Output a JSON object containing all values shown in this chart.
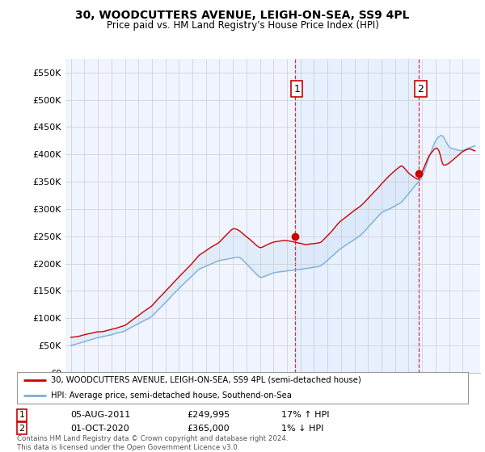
{
  "title": "30, WOODCUTTERS AVENUE, LEIGH-ON-SEA, SS9 4PL",
  "subtitle": "Price paid vs. HM Land Registry's House Price Index (HPI)",
  "ylabel_ticks": [
    "£0",
    "£50K",
    "£100K",
    "£150K",
    "£200K",
    "£250K",
    "£300K",
    "£350K",
    "£400K",
    "£450K",
    "£500K",
    "£550K"
  ],
  "ytick_values": [
    0,
    50000,
    100000,
    150000,
    200000,
    250000,
    300000,
    350000,
    400000,
    450000,
    500000,
    550000
  ],
  "ylim": [
    0,
    575000
  ],
  "sale1_x": 2011.583,
  "sale1_value": 249995,
  "sale1_label": "1",
  "sale2_x": 2020.75,
  "sale2_value": 365000,
  "sale2_label": "2",
  "legend_line1": "30, WOODCUTTERS AVENUE, LEIGH-ON-SEA, SS9 4PL (semi-detached house)",
  "legend_line2": "HPI: Average price, semi-detached house, Southend-on-Sea",
  "table_row1": [
    "1",
    "05-AUG-2011",
    "£249,995",
    "17% ↑ HPI"
  ],
  "table_row2": [
    "2",
    "01-OCT-2020",
    "£365,000",
    "1% ↓ HPI"
  ],
  "footer": "Contains HM Land Registry data © Crown copyright and database right 2024.\nThis data is licensed under the Open Government Licence v3.0.",
  "hpi_color": "#7aaed6",
  "price_color": "#cc0000",
  "fill_color": "#ddeeff",
  "dot_color": "#cc0000",
  "vline_color": "#cc0000",
  "grid_color": "#cccccc",
  "bg_color": "#ffffff",
  "chart_bg": "#f0f4ff"
}
